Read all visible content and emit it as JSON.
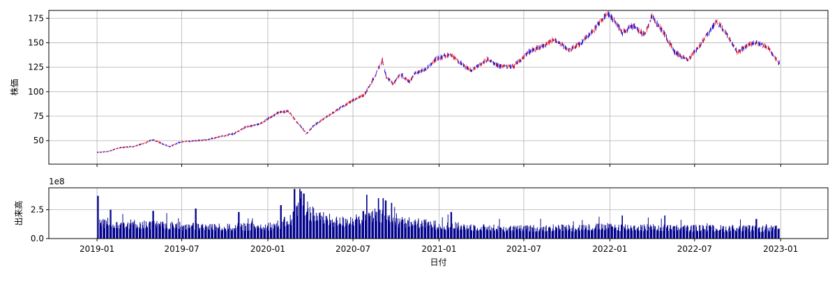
{
  "chart_data": {
    "type": "candlestick-with-volume",
    "xlabel": "日付",
    "x_ticks": [
      "2019-01",
      "2019-07",
      "2020-01",
      "2020-07",
      "2021-01",
      "2021-07",
      "2022-01",
      "2022-07",
      "2023-01"
    ],
    "xlim": [
      "2018-09-20",
      "2023-04-12"
    ],
    "colors": {
      "up": "#e8121b",
      "down": "#1f0fd6",
      "volume": "#00008b",
      "grid": "#b0b0b0"
    },
    "grid": true,
    "price_panel": {
      "ylabel": "株価",
      "ylim": [
        26,
        183
      ],
      "y_ticks": [
        50,
        75,
        100,
        125,
        150,
        175
      ],
      "close_path": [
        [
          "2019-01-02",
          38
        ],
        [
          "2019-01-25",
          39
        ],
        [
          "2019-02-20",
          43
        ],
        [
          "2019-03-20",
          44
        ],
        [
          "2019-04-15",
          48
        ],
        [
          "2019-05-01",
          51
        ],
        [
          "2019-05-20",
          47
        ],
        [
          "2019-06-05",
          44
        ],
        [
          "2019-07-01",
          49
        ],
        [
          "2019-08-05",
          50
        ],
        [
          "2019-08-25",
          51
        ],
        [
          "2019-09-20",
          54
        ],
        [
          "2019-10-20",
          57
        ],
        [
          "2019-11-15",
          64
        ],
        [
          "2019-12-15",
          67
        ],
        [
          "2020-01-10",
          75
        ],
        [
          "2020-01-25",
          79
        ],
        [
          "2020-02-15",
          80
        ],
        [
          "2020-02-25",
          73
        ],
        [
          "2020-03-15",
          63
        ],
        [
          "2020-03-23",
          57
        ],
        [
          "2020-04-10",
          66
        ],
        [
          "2020-05-05",
          74
        ],
        [
          "2020-06-05",
          84
        ],
        [
          "2020-07-01",
          91
        ],
        [
          "2020-07-25",
          97
        ],
        [
          "2020-08-10",
          110
        ],
        [
          "2020-08-25",
          124
        ],
        [
          "2020-09-02",
          132
        ],
        [
          "2020-09-10",
          115
        ],
        [
          "2020-09-25",
          108
        ],
        [
          "2020-10-10",
          118
        ],
        [
          "2020-10-30",
          110
        ],
        [
          "2020-11-10",
          119
        ],
        [
          "2020-12-01",
          122
        ],
        [
          "2020-12-28",
          134
        ],
        [
          "2021-01-25",
          138
        ],
        [
          "2021-02-20",
          128
        ],
        [
          "2021-03-10",
          121
        ],
        [
          "2021-04-15",
          133
        ],
        [
          "2021-05-10",
          126
        ],
        [
          "2021-06-10",
          126
        ],
        [
          "2021-07-10",
          140
        ],
        [
          "2021-08-15",
          148
        ],
        [
          "2021-09-05",
          154
        ],
        [
          "2021-10-05",
          142
        ],
        [
          "2021-11-01",
          150
        ],
        [
          "2021-12-01",
          165
        ],
        [
          "2021-12-28",
          180
        ],
        [
          "2022-01-15",
          170
        ],
        [
          "2022-01-28",
          160
        ],
        [
          "2022-02-20",
          168
        ],
        [
          "2022-03-15",
          158
        ],
        [
          "2022-04-01",
          177
        ],
        [
          "2022-04-25",
          161
        ],
        [
          "2022-05-20",
          140
        ],
        [
          "2022-06-16",
          132
        ],
        [
          "2022-07-10",
          146
        ],
        [
          "2022-08-17",
          172
        ],
        [
          "2022-09-10",
          157
        ],
        [
          "2022-10-01",
          140
        ],
        [
          "2022-10-25",
          148
        ],
        [
          "2022-11-10",
          150
        ],
        [
          "2022-12-05",
          145
        ],
        [
          "2022-12-29",
          129
        ]
      ]
    },
    "volume_panel": {
      "ylabel": "出来高",
      "scale_label": "1e8",
      "ylim": [
        0,
        4.4
      ],
      "y_ticks": [
        0.0,
        2.5
      ],
      "y_tick_labels": [
        "0.0",
        "2.5"
      ],
      "level_path": [
        [
          "2019-01-02",
          1.4
        ],
        [
          "2019-06-01",
          1.1
        ],
        [
          "2019-10-01",
          0.95
        ],
        [
          "2020-01-15",
          1.1
        ],
        [
          "2020-02-20",
          1.6
        ],
        [
          "2020-03-10",
          2.9
        ],
        [
          "2020-04-20",
          1.8
        ],
        [
          "2020-06-01",
          1.4
        ],
        [
          "2020-08-20",
          2.0
        ],
        [
          "2020-10-01",
          1.5
        ],
        [
          "2021-01-15",
          1.1
        ],
        [
          "2021-06-01",
          0.85
        ],
        [
          "2022-01-01",
          1.0
        ],
        [
          "2022-06-01",
          0.9
        ],
        [
          "2022-12-30",
          0.85
        ]
      ],
      "spikes": [
        [
          "2019-01-03",
          3.7
        ],
        [
          "2019-01-30",
          2.5
        ],
        [
          "2019-05-01",
          2.4
        ],
        [
          "2019-07-31",
          2.6
        ],
        [
          "2019-10-31",
          2.3
        ],
        [
          "2020-01-29",
          2.9
        ],
        [
          "2020-02-27",
          4.3
        ],
        [
          "2020-03-09",
          4.3
        ],
        [
          "2020-03-13",
          4.1
        ],
        [
          "2020-03-18",
          3.9
        ],
        [
          "2020-07-31",
          3.8
        ],
        [
          "2020-08-24",
          3.5
        ],
        [
          "2020-09-04",
          3.5
        ],
        [
          "2020-09-09",
          3.3
        ],
        [
          "2020-09-21",
          3.1
        ],
        [
          "2021-01-27",
          2.3
        ],
        [
          "2022-01-28",
          2.0
        ],
        [
          "2022-04-29",
          2.0
        ],
        [
          "2022-11-10",
          1.7
        ]
      ]
    }
  }
}
